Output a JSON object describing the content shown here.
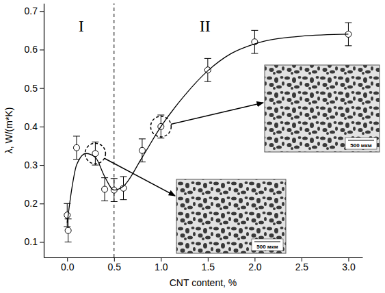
{
  "chart_data": {
    "type": "scatter",
    "x_label": "CNT content, %",
    "y_label": "λ, W/(m*K)",
    "xlim": [
      -0.25,
      3.15
    ],
    "ylim": [
      0.06,
      0.72
    ],
    "xticks": [
      {
        "value": 0,
        "label": "0.0"
      },
      0.5,
      {
        "value": 1,
        "label": "1.0"
      },
      1.5,
      {
        "value": 2,
        "label": "2.0"
      },
      2.5,
      {
        "value": 3,
        "label": "3.0"
      }
    ],
    "yticks": [
      0.1,
      0.2,
      0.3,
      0.4,
      0.5,
      0.6,
      0.7
    ],
    "grid": false,
    "series": [
      {
        "type": "scatter",
        "marker": "open-circle",
        "color": "#000000",
        "x": [
          0.0,
          0.01,
          0.1,
          0.3,
          0.4,
          0.5,
          0.6,
          0.8,
          1.0,
          1.5,
          2.0,
          3.0
        ],
        "values": [
          0.17,
          0.13,
          0.345,
          0.33,
          0.237,
          0.235,
          0.24,
          0.338,
          0.4,
          0.547,
          0.62,
          0.64
        ],
        "errors": [
          0.03,
          0.03,
          0.03,
          0.03,
          0.03,
          0.03,
          0.03,
          0.03,
          0.03,
          0.03,
          0.03,
          0.03
        ]
      },
      {
        "type": "line",
        "line_style": "solid",
        "color": "#000000",
        "x": [
          0.0,
          0.05,
          0.1,
          0.2,
          0.3,
          0.4,
          0.5,
          0.6,
          0.8,
          1.0,
          1.25,
          1.5,
          1.75,
          2.0,
          2.5,
          3.0
        ],
        "values": [
          0.15,
          0.24,
          0.3,
          0.33,
          0.32,
          0.27,
          0.235,
          0.245,
          0.32,
          0.4,
          0.48,
          0.545,
          0.59,
          0.615,
          0.635,
          0.64
        ]
      }
    ],
    "reference_line": {
      "x": 0.5,
      "line_style": "dashed"
    },
    "regions": [
      {
        "label": "I",
        "x": 0.15,
        "y": 0.647
      },
      {
        "label": "II",
        "x": 1.47,
        "y": 0.647
      }
    ],
    "highlights": [
      {
        "x": 0.3,
        "y": 0.33,
        "scale_label": "500 мкм"
      },
      {
        "x": 1.0,
        "y": 0.4,
        "scale_label": "500 мкм"
      }
    ]
  }
}
